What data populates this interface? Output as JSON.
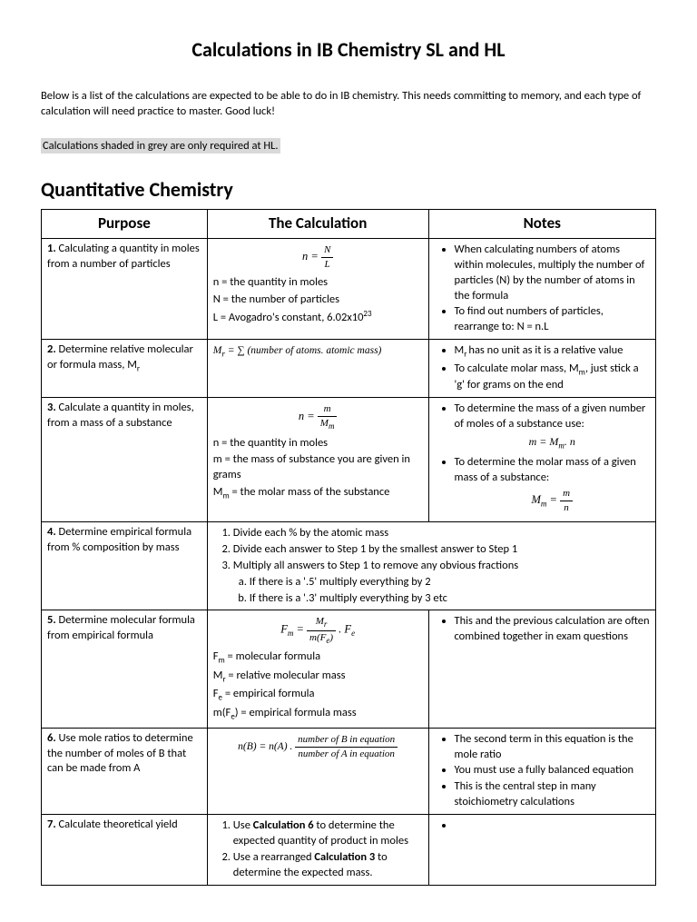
{
  "title": "Calculations in IB Chemistry SL and HL",
  "intro": "Below is a list of the calculations are expected to be able to do in IB chemistry. This needs committing to memory, and each type of calculation will need practice to master. Good luck!",
  "hl_note": "Calculations shaded in grey are only required at HL.",
  "section_heading": "Quantitative Chemistry",
  "columns": {
    "purpose": "Purpose",
    "calc": "The Calculation",
    "notes": "Notes"
  },
  "r1": {
    "purpose_bold": "1.",
    "purpose": " Calculating a quantity in  moles from a number of particles",
    "d1": "n = the quantity in moles",
    "d2": "N = the number of particles",
    "d3": "L = Avogadro's constant, 6.02x10",
    "n1": "When calculating numbers of atoms within molecules, multiply the number of particles (N) by the number of atoms in the formula",
    "n2": "To find out numbers of particles, rearrange to: N = n.L"
  },
  "r2": {
    "purpose_bold": "2.",
    "purpose": " Determine relative molecular or formula mass, M",
    "n1a": "M",
    "n1b": " has no unit as it is a relative value",
    "n2a": "To calculate molar mass, M",
    "n2b": ", just stick a 'g' for grams on the end"
  },
  "r3": {
    "purpose_bold": "3.",
    "purpose": " Calculate a quantity in moles, from a mass of a substance",
    "d1": "n = the quantity in moles",
    "d2": "m = the mass of substance you are given in grams",
    "d3a": "M",
    "d3b": " = the molar mass of the substance",
    "n1": "To determine the mass of a given number of moles of a substance use:",
    "n2": "To determine the molar mass of a given mass of a substance:"
  },
  "r4": {
    "purpose_bold": "4.",
    "purpose": " Determine empirical formula from % composition by mass",
    "s1": "Divide each % by the atomic mass",
    "s2": "Divide each answer to Step 1 by the smallest answer to Step 1",
    "s3": "Multiply all answers to Step 1 to remove any obvious fractions",
    "sa": "If there is a '.5' multiply everything by 2",
    "sb": "If there is a '.3' multiply everything by 3 etc"
  },
  "r5": {
    "purpose_bold": "5.",
    "purpose": " Determine molecular formula from empirical formula",
    "d1a": "F",
    "d1b": " = molecular formula",
    "d2a": "M",
    "d2b": " = relative molecular mass",
    "d3a": "F",
    "d3b": " = empirical formula",
    "d4a": "m(F",
    "d4b": ") = empirical formula mass",
    "n1": "This and the previous calculation are often combined together in exam questions"
  },
  "r6": {
    "purpose_bold": "6.",
    "purpose": " Use mole ratios to determine the number of moles of B that can be made from A",
    "n1": "The second term in this equation is the mole ratio",
    "n2": "You must use a fully balanced equation",
    "n3": "This is the central step in many stoichiometry calculations"
  },
  "r7": {
    "purpose_bold": "7.",
    "purpose": " Calculate theoretical yield",
    "s1a": "Use ",
    "s1b": "Calculation 6",
    "s1c": " to determine the expected quantity of product in moles",
    "s2a": "Use a rearranged ",
    "s2b": "Calculation 3",
    "s2c": " to determine the expected mass."
  }
}
